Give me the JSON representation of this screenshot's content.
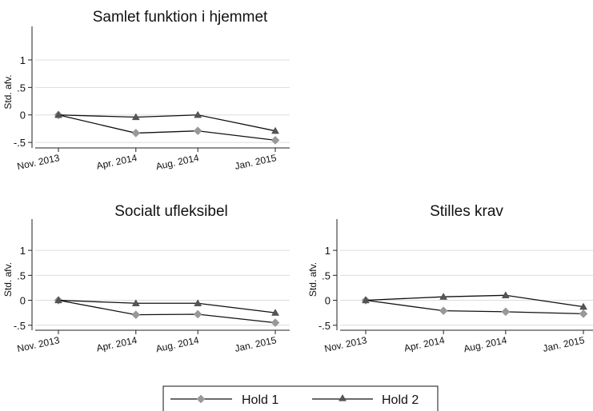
{
  "chart_data": [
    {
      "type": "line",
      "title": "Samlet funktion i hjemmet",
      "ylabel": "Std. afv.",
      "xlabel": "",
      "categories": [
        "Nov. 2013",
        "Apr. 2014",
        "Aug. 2014",
        "Jan. 2015"
      ],
      "x": [
        0,
        5,
        9,
        14
      ],
      "yticks": [
        1,
        0.5,
        0,
        -0.5
      ],
      "ytick_labels": [
        "1",
        ".5",
        "0",
        "-.5"
      ],
      "ylim": [
        -0.6,
        1.45
      ],
      "grid": true,
      "series": [
        {
          "name": "Hold 1",
          "values": [
            0,
            -0.33,
            -0.29,
            -0.46
          ]
        },
        {
          "name": "Hold 2",
          "values": [
            0,
            -0.04,
            0.0,
            -0.29
          ]
        }
      ]
    },
    {
      "type": "line",
      "title": "Socialt ufleksibel",
      "ylabel": "Std. afv.",
      "xlabel": "",
      "categories": [
        "Nov. 2013",
        "Apr. 2014",
        "Aug. 2014",
        "Jan. 2015"
      ],
      "x": [
        0,
        5,
        9,
        14
      ],
      "yticks": [
        1,
        0.5,
        0,
        -0.5
      ],
      "ytick_labels": [
        "1",
        ".5",
        "0",
        "-.5"
      ],
      "ylim": [
        -0.6,
        1.45
      ],
      "grid": true,
      "series": [
        {
          "name": "Hold 1",
          "values": [
            0,
            -0.29,
            -0.28,
            -0.45
          ]
        },
        {
          "name": "Hold 2",
          "values": [
            0,
            -0.06,
            -0.06,
            -0.25
          ]
        }
      ]
    },
    {
      "type": "line",
      "title": "Stilles krav",
      "ylabel": "Std. afv.",
      "xlabel": "",
      "categories": [
        "Nov. 2013",
        "Apr. 2014",
        "Aug. 2014",
        "Jan. 2015"
      ],
      "x": [
        0,
        5,
        9,
        14
      ],
      "yticks": [
        1,
        0.5,
        0,
        -0.5
      ],
      "ytick_labels": [
        "1",
        ".5",
        "0",
        "-.5"
      ],
      "ylim": [
        -0.6,
        1.45
      ],
      "grid": true,
      "series": [
        {
          "name": "Hold 1",
          "values": [
            0,
            -0.21,
            -0.23,
            -0.27
          ]
        },
        {
          "name": "Hold 2",
          "values": [
            0,
            0.07,
            0.1,
            -0.13
          ]
        }
      ]
    }
  ],
  "legend": {
    "placement": "bottom-center",
    "items": [
      {
        "label": "Hold 1",
        "marker": "diamond",
        "color": "#999999"
      },
      {
        "label": "Hold 2",
        "marker": "triangle",
        "color": "#555555"
      }
    ]
  },
  "colors": {
    "line": "#111111",
    "grid": "#dddddd",
    "axis": "#222222",
    "hold1_marker": "#999999",
    "hold2_marker": "#555555"
  }
}
